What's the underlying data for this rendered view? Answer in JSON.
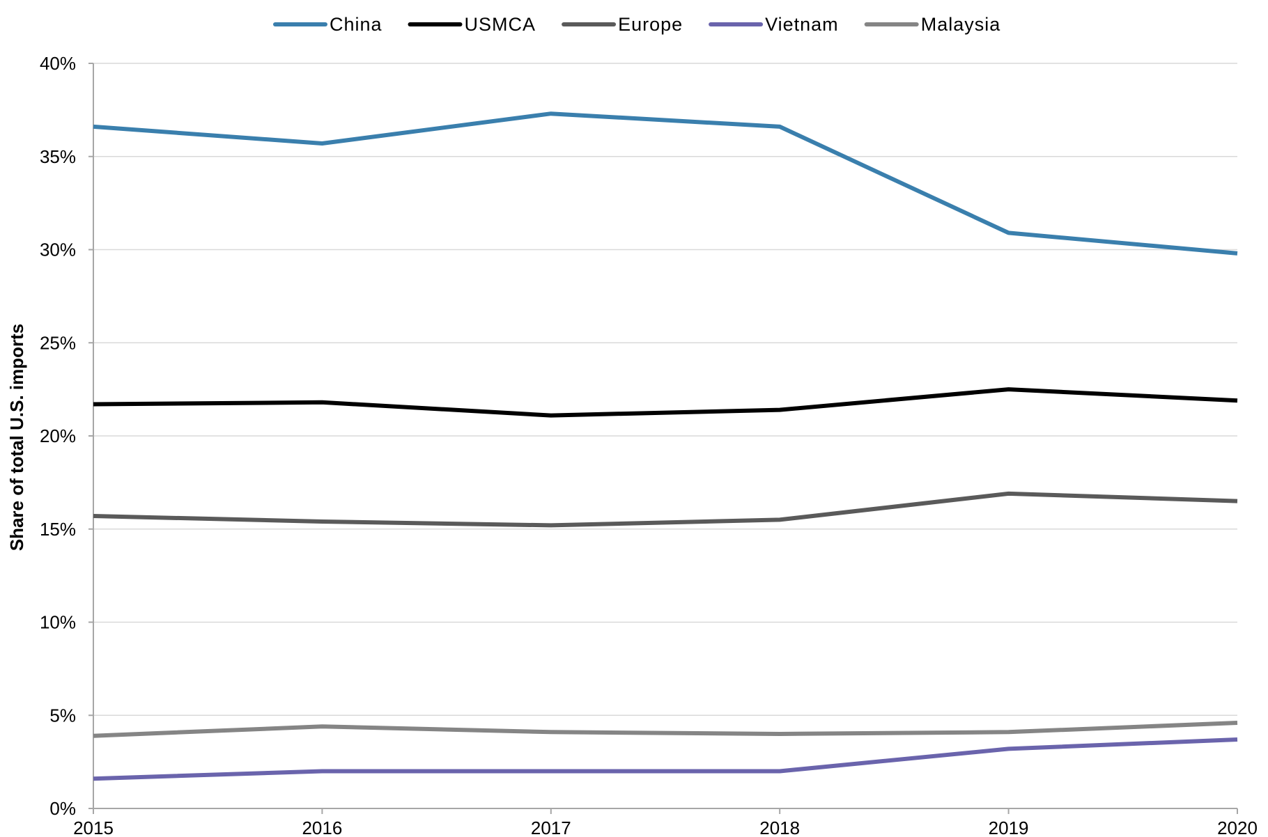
{
  "chart_data": {
    "type": "line",
    "title": "",
    "xlabel": "",
    "ylabel": "Share of total U.S. imports",
    "x": [
      "2015",
      "2016",
      "2017",
      "2018",
      "2019",
      "2020"
    ],
    "ylim": [
      0,
      40
    ],
    "yticks": [
      0,
      5,
      10,
      15,
      20,
      25,
      30,
      35,
      40
    ],
    "ytick_labels": [
      "0%",
      "5%",
      "10%",
      "15%",
      "20%",
      "25%",
      "30%",
      "35%",
      "40%"
    ],
    "grid": true,
    "legend_position": "top",
    "series": [
      {
        "name": "China",
        "color": "#3a7fad",
        "values": [
          36.6,
          35.7,
          37.3,
          36.6,
          30.9,
          29.8
        ]
      },
      {
        "name": "USMCA",
        "color": "#000000",
        "values": [
          21.7,
          21.8,
          21.1,
          21.4,
          22.5,
          21.9
        ]
      },
      {
        "name": "Europe",
        "color": "#5a5a5a",
        "values": [
          15.7,
          15.4,
          15.2,
          15.5,
          16.9,
          16.5
        ]
      },
      {
        "name": "Vietnam",
        "color": "#6a64ac",
        "values": [
          1.6,
          2.0,
          2.0,
          2.0,
          3.2,
          3.7
        ]
      },
      {
        "name": "Malaysia",
        "color": "#858585",
        "values": [
          3.9,
          4.4,
          4.1,
          4.0,
          4.1,
          4.6
        ]
      }
    ]
  }
}
